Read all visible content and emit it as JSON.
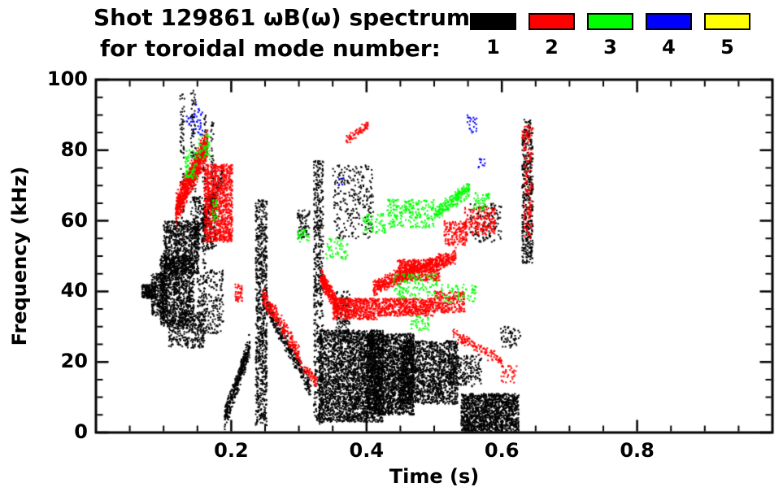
{
  "title": {
    "line1": "Shot 129861 ωB(ω) spectrum",
    "line2": "for toroidal mode number:"
  },
  "legend": {
    "items": [
      {
        "label": "1",
        "color": "#000000"
      },
      {
        "label": "2",
        "color": "#ff0000"
      },
      {
        "label": "3",
        "color": "#00ff00"
      },
      {
        "label": "4",
        "color": "#0000ff"
      },
      {
        "label": "5",
        "color": "#ffff00"
      }
    ]
  },
  "chart_data": {
    "type": "scatter",
    "title": "Shot 129861 ωB(ω) spectrum for toroidal mode number: 1 2 3 4 5",
    "xlabel": "Time (s)",
    "ylabel": "Frequency (kHz)",
    "xlim": [
      0,
      1
    ],
    "ylim": [
      0,
      100
    ],
    "xticks": [
      {
        "v": 0.2,
        "label": "0.2"
      },
      {
        "v": 0.4,
        "label": "0.4"
      },
      {
        "v": 0.6,
        "label": "0.6"
      },
      {
        "v": 0.8,
        "label": "0.8"
      }
    ],
    "yticks": [
      {
        "v": 0,
        "label": "0"
      },
      {
        "v": 20,
        "label": "20"
      },
      {
        "v": 40,
        "label": "40"
      },
      {
        "v": 60,
        "label": "60"
      },
      {
        "v": 80,
        "label": "80"
      },
      {
        "v": 100,
        "label": "100"
      }
    ],
    "xminor_step": 0.05,
    "yminor_step": 5,
    "grid": false,
    "legend_position": "top-right",
    "series": [
      {
        "name": "n=1",
        "color": "#000000",
        "clusters": [
          {
            "type": "blob",
            "t": [
              0.068,
              0.088
            ],
            "f": [
              38,
              42
            ],
            "n": 180
          },
          {
            "type": "blob",
            "t": [
              0.082,
              0.105
            ],
            "f": [
              33,
              45
            ],
            "n": 300
          },
          {
            "type": "blob",
            "t": [
              0.095,
              0.145
            ],
            "f": [
              30,
              50
            ],
            "n": 1000
          },
          {
            "type": "blob",
            "t": [
              0.1,
              0.152
            ],
            "f": [
              45,
              60
            ],
            "n": 800
          },
          {
            "type": "blob",
            "t": [
              0.108,
              0.16
            ],
            "f": [
              24,
              34
            ],
            "n": 300
          },
          {
            "type": "blob",
            "t": [
              0.124,
              0.131
            ],
            "f": [
              60,
              96
            ],
            "n": 70
          },
          {
            "type": "blob",
            "t": [
              0.14,
              0.148
            ],
            "f": [
              60,
              97
            ],
            "n": 90
          },
          {
            "type": "blob",
            "t": [
              0.145,
              0.178
            ],
            "f": [
              52,
              67
            ],
            "n": 280
          },
          {
            "type": "chirp",
            "p0": [
              0.155,
              58
            ],
            "p1": [
              0.188,
              73
            ],
            "spread": 3,
            "n": 140
          },
          {
            "type": "blob",
            "t": [
              0.15,
              0.188
            ],
            "f": [
              28,
              46
            ],
            "n": 220
          },
          {
            "type": "blob",
            "t": [
              0.158,
              0.163
            ],
            "f": [
              25,
              90
            ],
            "n": 120
          },
          {
            "type": "blob",
            "t": [
              0.17,
              0.174
            ],
            "f": [
              62,
              88
            ],
            "n": 50
          },
          {
            "type": "chirp",
            "p0": [
              0.19,
              4
            ],
            "p1": [
              0.228,
              25
            ],
            "spread": 4,
            "n": 380
          },
          {
            "type": "blob",
            "t": [
              0.236,
              0.253
            ],
            "f": [
              2,
              66
            ],
            "n": 800
          },
          {
            "type": "chirp",
            "p0": [
              0.252,
              36
            ],
            "p1": [
              0.318,
              12
            ],
            "spread": 3,
            "n": 320
          },
          {
            "type": "blob",
            "t": [
              0.298,
              0.316
            ],
            "f": [
              55,
              63
            ],
            "n": 70
          },
          {
            "type": "blob",
            "t": [
              0.322,
              0.336
            ],
            "f": [
              2,
              77
            ],
            "n": 550
          },
          {
            "type": "blob",
            "t": [
              0.33,
              0.425
            ],
            "f": [
              3,
              29
            ],
            "n": 2600
          },
          {
            "type": "blob",
            "t": [
              0.4,
              0.47
            ],
            "f": [
              5,
              28
            ],
            "n": 2100
          },
          {
            "type": "blob",
            "t": [
              0.45,
              0.535
            ],
            "f": [
              8,
              26
            ],
            "n": 1500
          },
          {
            "type": "blob",
            "t": [
              0.35,
              0.41
            ],
            "f": [
              55,
              76
            ],
            "n": 260
          },
          {
            "type": "blob",
            "t": [
              0.355,
              0.375
            ],
            "f": [
              28,
              40
            ],
            "n": 120
          },
          {
            "type": "blob",
            "t": [
              0.52,
              0.57
            ],
            "f": [
              13,
              22
            ],
            "n": 220
          },
          {
            "type": "blob",
            "t": [
              0.54,
              0.625
            ],
            "f": [
              0,
              11
            ],
            "n": 1400
          },
          {
            "type": "blob",
            "t": [
              0.553,
              0.6
            ],
            "f": [
              54,
              65
            ],
            "n": 130
          },
          {
            "type": "blob",
            "t": [
              0.598,
              0.628
            ],
            "f": [
              24,
              30
            ],
            "n": 60
          },
          {
            "type": "blob",
            "t": [
              0.63,
              0.646
            ],
            "f": [
              48,
              85
            ],
            "n": 420
          },
          {
            "type": "blob",
            "t": [
              0.633,
              0.643
            ],
            "f": [
              85,
              89
            ],
            "n": 30
          }
        ]
      },
      {
        "name": "n=2",
        "color": "#ff0000",
        "clusters": [
          {
            "type": "chirp",
            "p0": [
              0.118,
              63
            ],
            "p1": [
              0.165,
              82
            ],
            "spread": 5,
            "n": 1000
          },
          {
            "type": "blob",
            "t": [
              0.16,
              0.202
            ],
            "f": [
              54,
              76
            ],
            "n": 1000
          },
          {
            "type": "blob",
            "t": [
              0.205,
              0.216
            ],
            "f": [
              37,
              42
            ],
            "n": 45
          },
          {
            "type": "chirp",
            "p0": [
              0.246,
              39
            ],
            "p1": [
              0.302,
              22
            ],
            "spread": 3,
            "n": 260
          },
          {
            "type": "chirp",
            "p0": [
              0.302,
              20
            ],
            "p1": [
              0.327,
              14
            ],
            "spread": 2,
            "n": 60
          },
          {
            "type": "chirp",
            "p0": [
              0.332,
              44
            ],
            "p1": [
              0.356,
              36
            ],
            "spread": 3,
            "n": 280
          },
          {
            "type": "blob",
            "t": [
              0.35,
              0.42
            ],
            "f": [
              32,
              38
            ],
            "n": 550
          },
          {
            "type": "blob",
            "t": [
              0.42,
              0.5
            ],
            "f": [
              33,
              38
            ],
            "n": 480
          },
          {
            "type": "blob",
            "t": [
              0.5,
              0.545
            ],
            "f": [
              34,
              40
            ],
            "n": 220
          },
          {
            "type": "chirp",
            "p0": [
              0.41,
              41
            ],
            "p1": [
              0.47,
              46
            ],
            "spread": 2.5,
            "n": 360
          },
          {
            "type": "chirp",
            "p0": [
              0.47,
              46
            ],
            "p1": [
              0.532,
              50
            ],
            "spread": 2.5,
            "n": 320
          },
          {
            "type": "blob",
            "t": [
              0.445,
              0.508
            ],
            "f": [
              43,
              49
            ],
            "n": 420
          },
          {
            "type": "chirp",
            "p0": [
              0.37,
              83
            ],
            "p1": [
              0.402,
              87
            ],
            "spread": 1.5,
            "n": 70
          },
          {
            "type": "blob",
            "t": [
              0.515,
              0.548
            ],
            "f": [
              53,
              60
            ],
            "n": 160
          },
          {
            "type": "blob",
            "t": [
              0.545,
              0.59
            ],
            "f": [
              56,
              64
            ],
            "n": 190
          },
          {
            "type": "chirp",
            "p0": [
              0.528,
              28
            ],
            "p1": [
              0.6,
              20
            ],
            "spread": 2,
            "n": 130
          },
          {
            "type": "blob",
            "t": [
              0.598,
              0.622
            ],
            "f": [
              14,
              19
            ],
            "n": 35
          },
          {
            "type": "blob",
            "t": [
              0.632,
              0.645
            ],
            "f": [
              55,
              83
            ],
            "n": 130
          },
          {
            "type": "blob",
            "t": [
              0.63,
              0.646
            ],
            "f": [
              83,
              87
            ],
            "n": 45
          }
        ]
      },
      {
        "name": "n=3",
        "color": "#00ff00",
        "clusters": [
          {
            "type": "blob",
            "t": [
              0.132,
              0.15
            ],
            "f": [
              72,
              80
            ],
            "n": 70
          },
          {
            "type": "blob",
            "t": [
              0.152,
              0.168
            ],
            "f": [
              77,
              85
            ],
            "n": 55
          },
          {
            "type": "blob",
            "t": [
              0.172,
              0.181
            ],
            "f": [
              60,
              66
            ],
            "n": 28
          },
          {
            "type": "blob",
            "t": [
              0.298,
              0.316
            ],
            "f": [
              54,
              58
            ],
            "n": 30
          },
          {
            "type": "blob",
            "t": [
              0.34,
              0.372
            ],
            "f": [
              49,
              55
            ],
            "n": 55
          },
          {
            "type": "blob",
            "t": [
              0.395,
              0.428
            ],
            "f": [
              56,
              62
            ],
            "n": 65
          },
          {
            "type": "blob",
            "t": [
              0.43,
              0.5
            ],
            "f": [
              58,
              66
            ],
            "n": 220
          },
          {
            "type": "chirp",
            "p0": [
              0.5,
              62
            ],
            "p1": [
              0.552,
              69
            ],
            "spread": 2.5,
            "n": 220
          },
          {
            "type": "blob",
            "t": [
              0.44,
              0.505
            ],
            "f": [
              38,
              45
            ],
            "n": 130
          },
          {
            "type": "blob",
            "t": [
              0.51,
              0.562
            ],
            "f": [
              37,
              42
            ],
            "n": 65
          },
          {
            "type": "blob",
            "t": [
              0.465,
              0.492
            ],
            "f": [
              29,
              33
            ],
            "n": 40
          },
          {
            "type": "blob",
            "t": [
              0.558,
              0.582
            ],
            "f": [
              63,
              68
            ],
            "n": 45
          }
        ]
      },
      {
        "name": "n=4",
        "color": "#0000ff",
        "clusters": [
          {
            "type": "blob",
            "t": [
              0.143,
              0.158
            ],
            "f": [
              84,
              93
            ],
            "n": 35
          },
          {
            "type": "blob",
            "t": [
              0.134,
              0.141
            ],
            "f": [
              87,
              90
            ],
            "n": 10
          },
          {
            "type": "blob",
            "t": [
              0.548,
              0.563
            ],
            "f": [
              85,
              90
            ],
            "n": 22
          },
          {
            "type": "blob",
            "t": [
              0.565,
              0.576
            ],
            "f": [
              75,
              78
            ],
            "n": 12
          },
          {
            "type": "blob",
            "t": [
              0.358,
              0.367
            ],
            "f": [
              70,
              73
            ],
            "n": 6
          }
        ]
      },
      {
        "name": "n=5",
        "color": "#ffff00",
        "clusters": []
      }
    ]
  }
}
